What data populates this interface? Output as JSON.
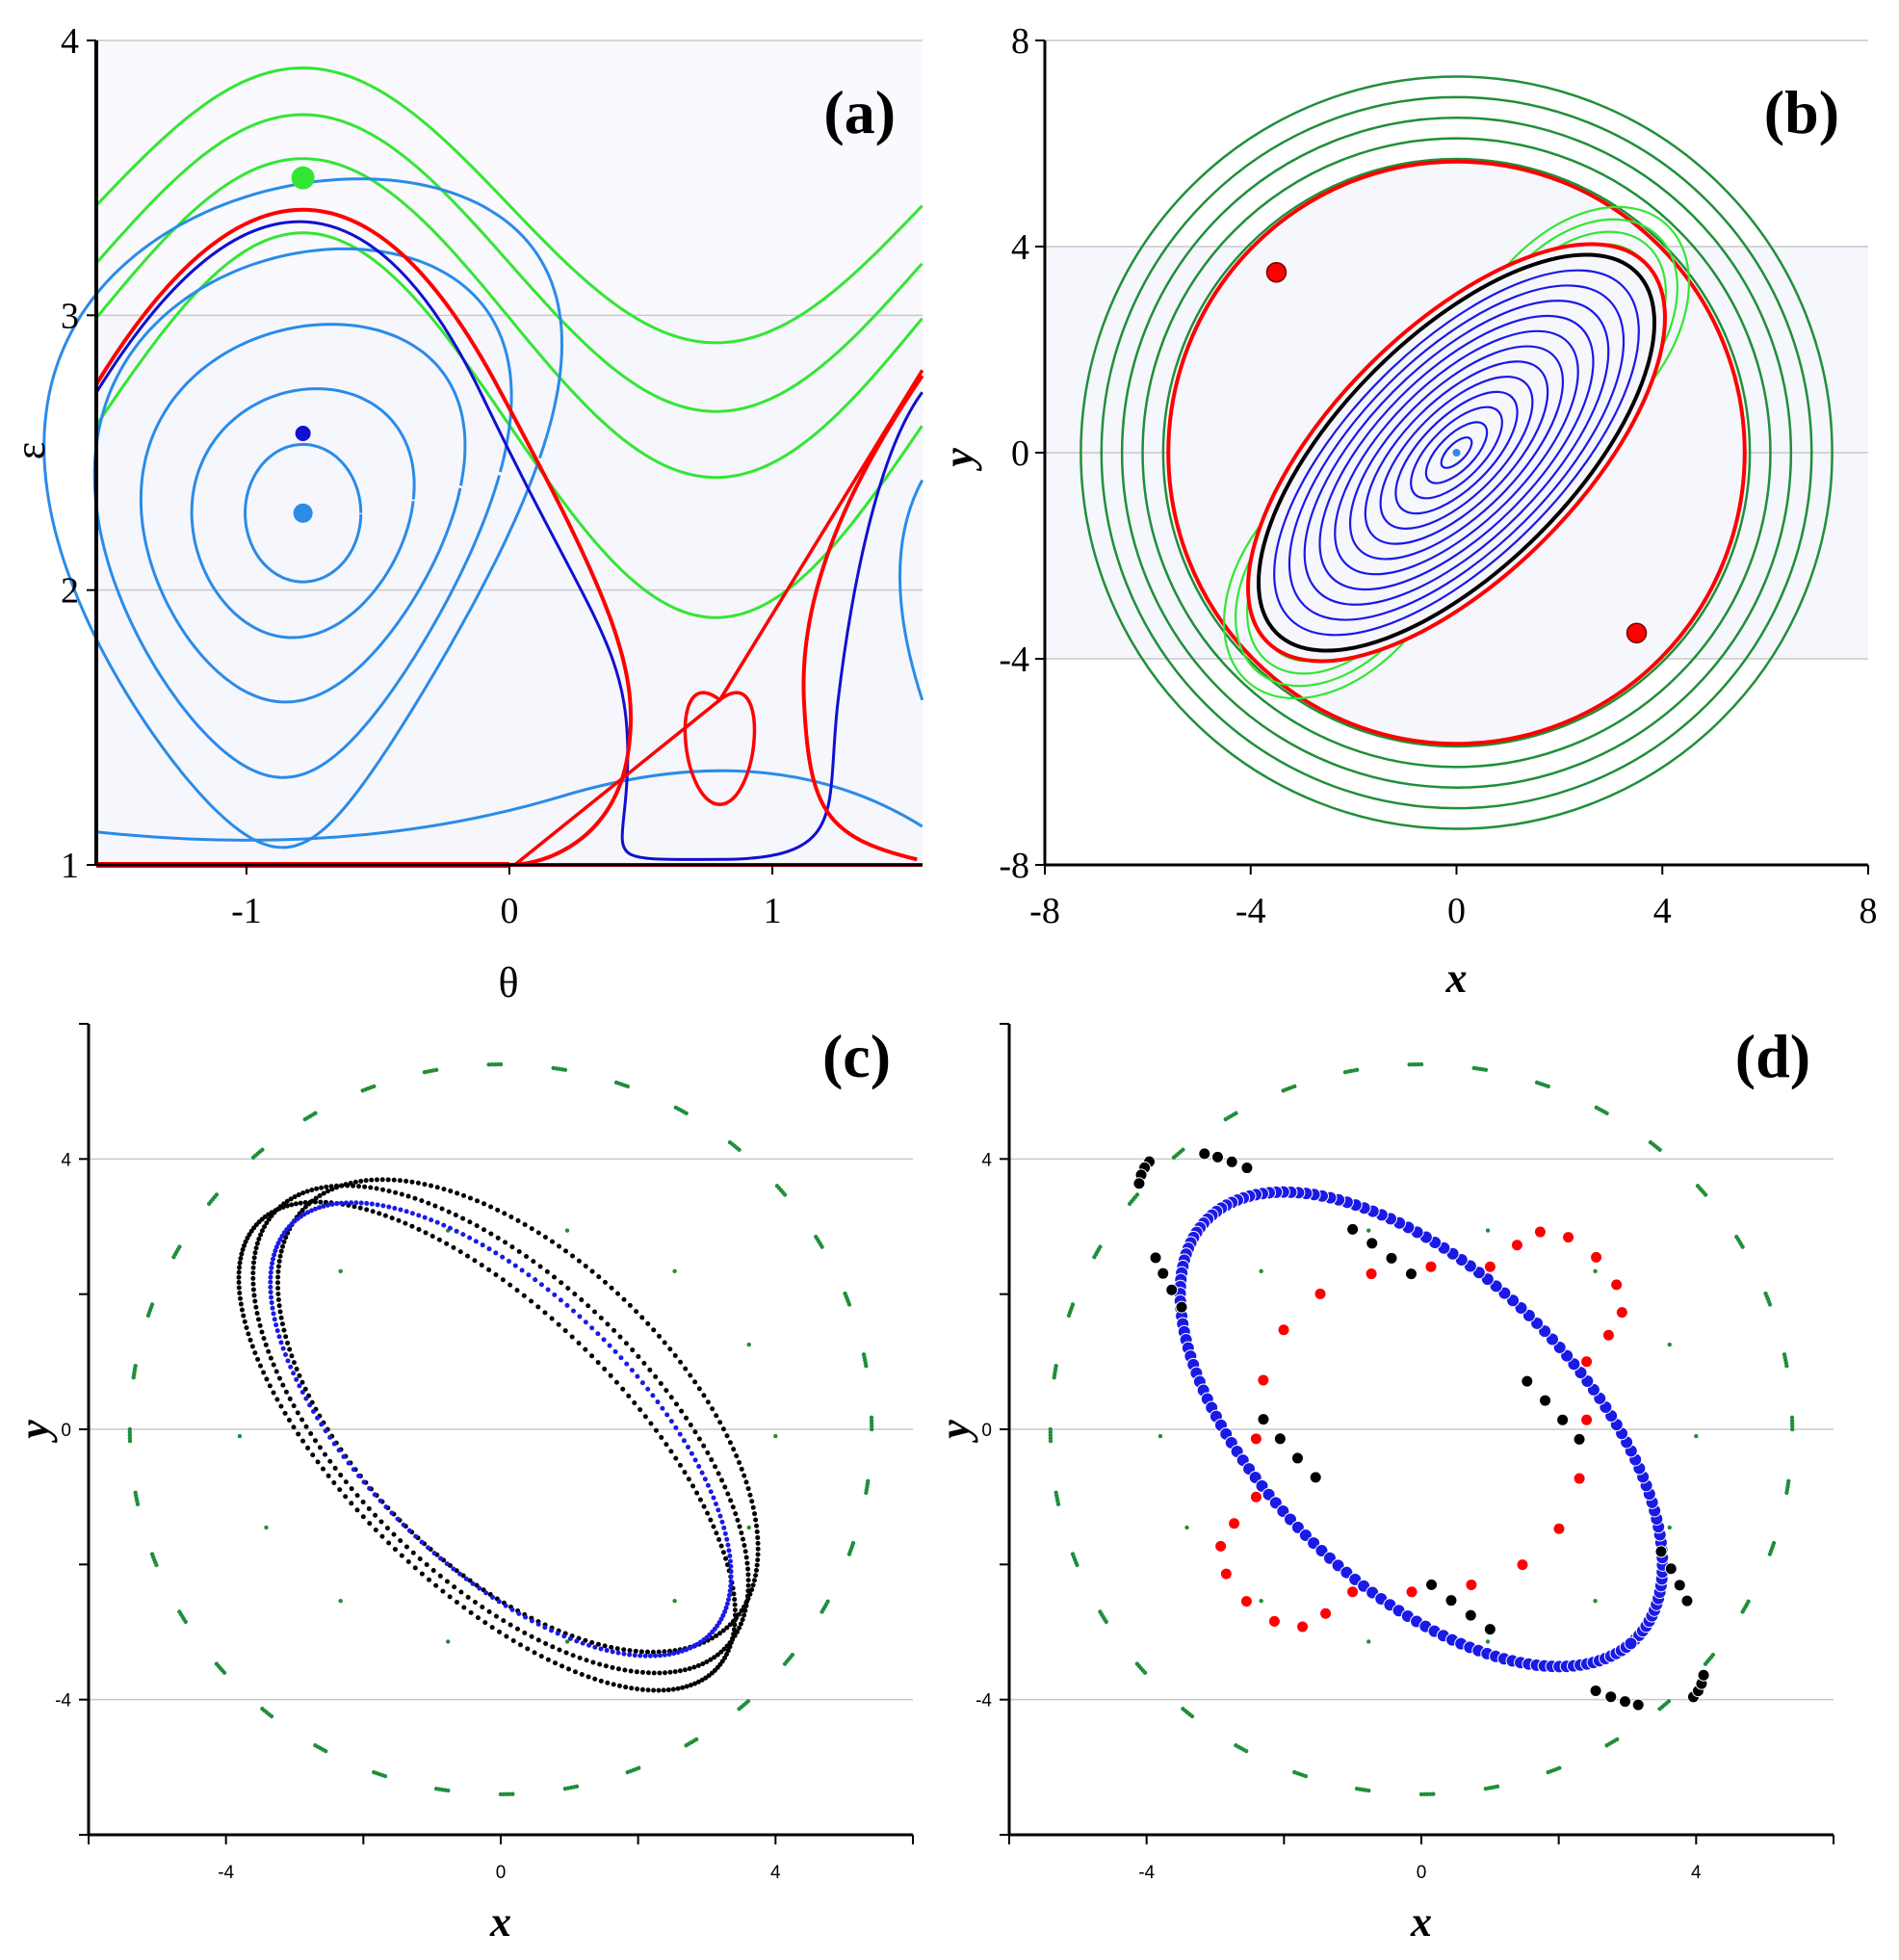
{
  "chart_data": [
    {
      "panel": "(a)",
      "type": "line",
      "xlabel": "θ",
      "ylabel": "ε",
      "xlim": [
        -1.571,
        1.571
      ],
      "ylim": [
        1,
        4
      ],
      "xticks": [
        "-1",
        "0",
        "1"
      ],
      "yticks": [
        "1",
        "2",
        "3",
        "4"
      ],
      "grid": "horizontal",
      "colors": {
        "outer": "#33e633",
        "inner": "#2a8be8",
        "separatrix": "#ff0000",
        "dark": "#1010d0",
        "band": "#f6f6fd"
      },
      "points": [
        {
          "x": -0.785,
          "y": 3.5,
          "color": "#33e633"
        },
        {
          "x": -0.785,
          "y": 2.57,
          "color": "#1010d0"
        },
        {
          "x": -0.785,
          "y": 2.28,
          "color": "#2a8be8"
        }
      ]
    },
    {
      "panel": "(b)",
      "type": "line",
      "xlabel": "x",
      "ylabel": "y",
      "xlim": [
        -8,
        8
      ],
      "ylim": [
        -8,
        8
      ],
      "xticks": [
        "-8",
        "-4",
        "0",
        "4",
        "8"
      ],
      "yticks": [
        "-8",
        "-4",
        "0",
        "4",
        "8"
      ],
      "grid": "horizontal",
      "colors": {
        "outer": "#1f8f3a",
        "lobes": "#33e633",
        "inner": "#1a1ae6",
        "separatrix": "#ff0000",
        "boundary": "#000000"
      },
      "points": [
        {
          "x": -3.5,
          "y": 3.5,
          "color": "#ff0000"
        },
        {
          "x": 3.5,
          "y": -3.5,
          "color": "#ff0000"
        },
        {
          "x": 0,
          "y": 0,
          "color": "#2a8be8"
        }
      ]
    },
    {
      "panel": "(c)",
      "type": "scatter",
      "xlabel": "x",
      "ylabel": "y",
      "xlim": [
        -6,
        6
      ],
      "ylim": [
        -6,
        6
      ],
      "xticks": [
        "-4",
        "0",
        "4"
      ],
      "yticks": [
        "-4",
        "0",
        "4"
      ],
      "grid": "horizontal",
      "series": [
        {
          "color": "#1f8f3a",
          "shape": "ring",
          "radius": 5.4
        },
        {
          "color": "#000000",
          "shape": "tilted-ellipses",
          "semi_major": 4.6,
          "semi_minor": 2.2,
          "angle_deg": -45
        },
        {
          "color": "#1a1ae6",
          "shape": "tilted-ellipse",
          "semi_major": 4.3,
          "semi_minor": 2.0,
          "angle_deg": -45
        }
      ]
    },
    {
      "panel": "(d)",
      "type": "scatter",
      "xlabel": "x",
      "ylabel": "y",
      "xlim": [
        -6,
        6
      ],
      "ylim": [
        -6,
        6
      ],
      "xticks": [
        "-4",
        "0",
        "4"
      ],
      "yticks": [
        "-4",
        "0",
        "4"
      ],
      "grid": "horizontal",
      "series": [
        {
          "color": "#1f8f3a",
          "shape": "ring",
          "radius": 5.4
        },
        {
          "color": "#1a1ae6",
          "shape": "tilted-ellipse",
          "semi_major": 4.4,
          "semi_minor": 2.3,
          "angle_deg": -45
        },
        {
          "color": "#000000",
          "shape": "tilted-ellipse-arcs",
          "semi_major": 5.6,
          "semi_minor": 1.6,
          "angle_deg": -45
        },
        {
          "color": "#ff0000",
          "shape": "rotated-figure",
          "semi_major": 3.6,
          "semi_minor": 1.2,
          "angle_deg": 45
        }
      ]
    }
  ]
}
